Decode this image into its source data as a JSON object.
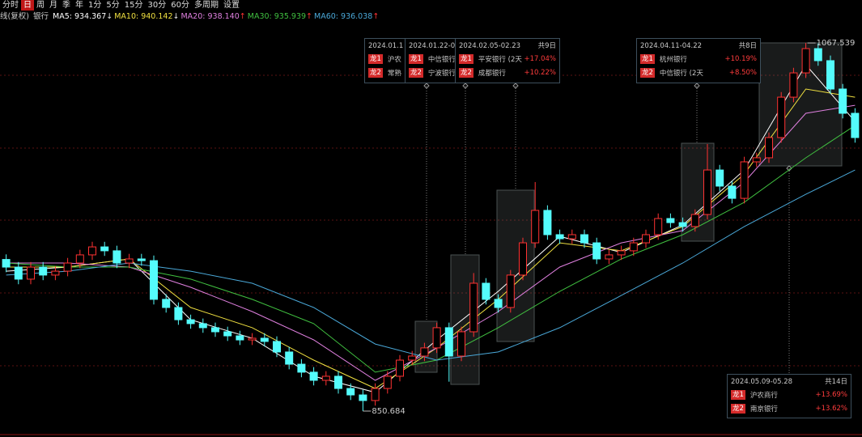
{
  "toolbar": {
    "items": [
      "分时",
      "日",
      "周",
      "月",
      "季",
      "年",
      "1分",
      "5分",
      "15分",
      "30分",
      "60分",
      "多周期",
      "设置"
    ],
    "active": "日"
  },
  "chart_data": {
    "type": "candlestick",
    "title": "线(复权)",
    "subtitle": "银行",
    "up_color": "#ff3232",
    "down_color": "#54fcfc",
    "ylim": [
      837.8,
      1083.3
    ],
    "open": [
      940.0,
      935.5,
      928.4,
      935.5,
      930.8,
      933.1,
      937.9,
      942.7,
      947.4,
      945.1,
      937.9,
      940.3,
      939.3,
      916.5,
      911.7,
      904.5,
      902.2,
      899.8,
      897.4,
      895.0,
      892.6,
      893.6,
      891.7,
      885.5,
      878.3,
      873.6,
      868.8,
      871.2,
      864.0,
      860.2,
      856.9,
      864.0,
      871.2,
      880.7,
      883.1,
      887.9,
      899.8,
      883.1,
      897.4,
      926.0,
      916.5,
      911.7,
      930.8,
      949.8,
      968.9,
      954.6,
      952.2,
      954.6,
      949.8,
      940.3,
      942.7,
      945.1,
      949.8,
      954.6,
      964.1,
      961.7,
      959.4,
      966.5,
      992.7,
      983.2,
      976.0,
      997.5,
      999.9,
      1011.8,
      1035.6,
      1049.9,
      1064.2,
      1057.1,
      1040.4,
      1026.1
    ],
    "high": [
      943.0,
      938.5,
      938.5,
      938.5,
      936.1,
      940.9,
      945.7,
      950.4,
      950.4,
      948.1,
      943.3,
      943.3,
      942.3,
      919.5,
      914.7,
      907.5,
      905.2,
      902.8,
      900.4,
      898.0,
      896.6,
      896.6,
      894.7,
      888.5,
      881.3,
      876.6,
      874.2,
      874.2,
      867.0,
      863.2,
      867.0,
      874.2,
      883.7,
      886.1,
      890.9,
      902.8,
      902.8,
      900.4,
      932.0,
      929.0,
      919.5,
      933.8,
      952.8,
      985.6,
      971.9,
      957.6,
      957.6,
      957.6,
      952.8,
      945.7,
      948.1,
      952.8,
      957.6,
      967.1,
      967.1,
      964.7,
      969.5,
      1008.0,
      995.7,
      986.2,
      1000.5,
      1002.9,
      1014.8,
      1038.6,
      1052.9,
      1067.539,
      1067.2,
      1060.1,
      1043.4,
      1029.1
    ],
    "low": [
      932.5,
      925.4,
      925.4,
      927.8,
      927.8,
      930.1,
      934.9,
      939.7,
      942.1,
      934.9,
      934.9,
      936.3,
      913.5,
      908.7,
      901.5,
      899.2,
      896.8,
      894.4,
      892.0,
      889.6,
      889.6,
      888.7,
      882.5,
      875.3,
      870.6,
      865.8,
      865.8,
      861.0,
      857.2,
      850.684,
      853.9,
      861.0,
      868.2,
      877.7,
      880.1,
      884.9,
      868.0,
      880.1,
      894.4,
      913.5,
      908.7,
      908.7,
      927.8,
      946.8,
      951.6,
      949.2,
      949.2,
      946.8,
      937.3,
      937.3,
      939.7,
      942.1,
      946.8,
      951.6,
      958.7,
      956.4,
      956.4,
      963.5,
      980.2,
      973.0,
      973.0,
      994.5,
      996.9,
      1008.8,
      1032.6,
      1046.9,
      1054.1,
      1037.4,
      1023.1,
      1008.8
    ],
    "close": [
      935.5,
      928.4,
      935.5,
      930.8,
      933.1,
      937.9,
      942.7,
      947.4,
      945.1,
      937.9,
      940.3,
      939.3,
      916.5,
      911.7,
      904.5,
      902.2,
      899.8,
      897.4,
      895.0,
      892.6,
      893.6,
      891.7,
      885.5,
      878.3,
      873.6,
      868.8,
      871.2,
      864.0,
      860.2,
      856.9,
      864.0,
      871.2,
      880.7,
      883.1,
      887.9,
      899.8,
      883.1,
      897.4,
      926.0,
      916.5,
      911.7,
      930.8,
      949.8,
      968.9,
      954.6,
      952.2,
      954.6,
      949.8,
      940.3,
      942.7,
      945.1,
      949.8,
      954.6,
      964.1,
      961.7,
      959.4,
      966.5,
      992.7,
      983.2,
      976.0,
      997.5,
      999.9,
      1011.8,
      1035.6,
      1049.9,
      1064.2,
      1057.1,
      1040.4,
      1026.1,
      1011.8
    ],
    "series": [
      {
        "legend": "MA5: 934.367",
        "trend": "↓",
        "color": "#ffffff",
        "x": [
          0,
          5,
          10,
          15,
          20,
          25,
          30,
          35,
          40,
          45,
          50,
          55,
          60,
          65,
          69
        ],
        "values": [
          933.1,
          935.5,
          940.3,
          904.5,
          893.6,
          871.2,
          861.7,
          892.6,
          921.2,
          953.6,
          944.1,
          960.3,
          992.7,
          1054.7,
          1021.3
        ]
      },
      {
        "legend": "MA10: 940.142",
        "trend": "↓",
        "color": "#f0e040",
        "x": [
          0,
          5,
          10,
          15,
          20,
          25,
          30,
          35,
          40,
          45,
          50,
          55,
          60,
          65,
          69
        ],
        "values": [
          935.5,
          935.5,
          940.3,
          911.7,
          899.8,
          880.7,
          864.0,
          887.9,
          916.5,
          949.8,
          945.1,
          959.4,
          990.3,
          1040.4,
          1035.6
        ]
      },
      {
        "legend": "MA20: 938.140",
        "trend": "↑",
        "color": "#e080e0",
        "x": [
          0,
          5,
          10,
          15,
          20,
          25,
          30,
          35,
          40,
          45,
          50,
          55,
          60,
          65,
          69
        ],
        "values": [
          937.9,
          937.9,
          935.5,
          923.6,
          909.3,
          892.6,
          868.8,
          887.9,
          909.3,
          935.5,
          949.8,
          957.0,
          985.6,
          1026.1,
          1030.8
        ]
      },
      {
        "legend": "MA30: 935.939",
        "trend": "↑",
        "color": "#40c040",
        "x": [
          0,
          5,
          10,
          15,
          20,
          25,
          30,
          35,
          40,
          45,
          50,
          55,
          60,
          65,
          69
        ],
        "values": [
          937.9,
          935.5,
          935.5,
          928.4,
          916.5,
          902.2,
          873.6,
          880.7,
          899.8,
          921.2,
          940.3,
          954.6,
          973.7,
          999.9,
          1018.9
        ]
      },
      {
        "legend": "MA60: 936.038",
        "trend": "↑",
        "color": "#4aa8d8",
        "x": [
          0,
          5,
          10,
          15,
          20,
          25,
          30,
          35,
          40,
          45,
          50,
          55,
          60,
          65,
          69
        ],
        "values": [
          930.8,
          933.1,
          937.9,
          933.1,
          926.0,
          911.7,
          890.2,
          880.7,
          885.5,
          899.8,
          918.8,
          937.9,
          959.4,
          978.4,
          992.7
        ]
      }
    ]
  },
  "periods": [
    {
      "date": "2024.01.1",
      "leaders": [
        {
          "badge": "龙1",
          "name": "沪农"
        },
        {
          "badge": "龙2",
          "name": "常熟"
        }
      ]
    },
    {
      "date": "2024.01.22-0",
      "leaders": [
        {
          "badge": "龙1",
          "name": "中信银行"
        },
        {
          "badge": "龙2",
          "name": "宁波银行"
        }
      ]
    },
    {
      "date": "2024.02.05-02.23",
      "days": "共9日",
      "leaders": [
        {
          "badge": "龙1",
          "name": "平安银行 (2天",
          "change": "+17.04%"
        },
        {
          "badge": "龙2",
          "name": "成都银行",
          "change": "+10.22%"
        }
      ]
    },
    {
      "date": "2024.04.11-04.22",
      "days": "共8日",
      "leaders": [
        {
          "badge": "龙1",
          "name": "杭州银行",
          "change": "+10.19%"
        },
        {
          "badge": "龙2",
          "name": "中信银行 (2天",
          "change": "+8.50%"
        }
      ]
    },
    {
      "date": "2024.05.09-05.28",
      "days": "共14日",
      "leaders": [
        {
          "badge": "龙1",
          "name": "沪农商行",
          "change": "+13.69%"
        },
        {
          "badge": "龙2",
          "name": "南京银行",
          "change": "+13.62%"
        }
      ]
    }
  ]
}
